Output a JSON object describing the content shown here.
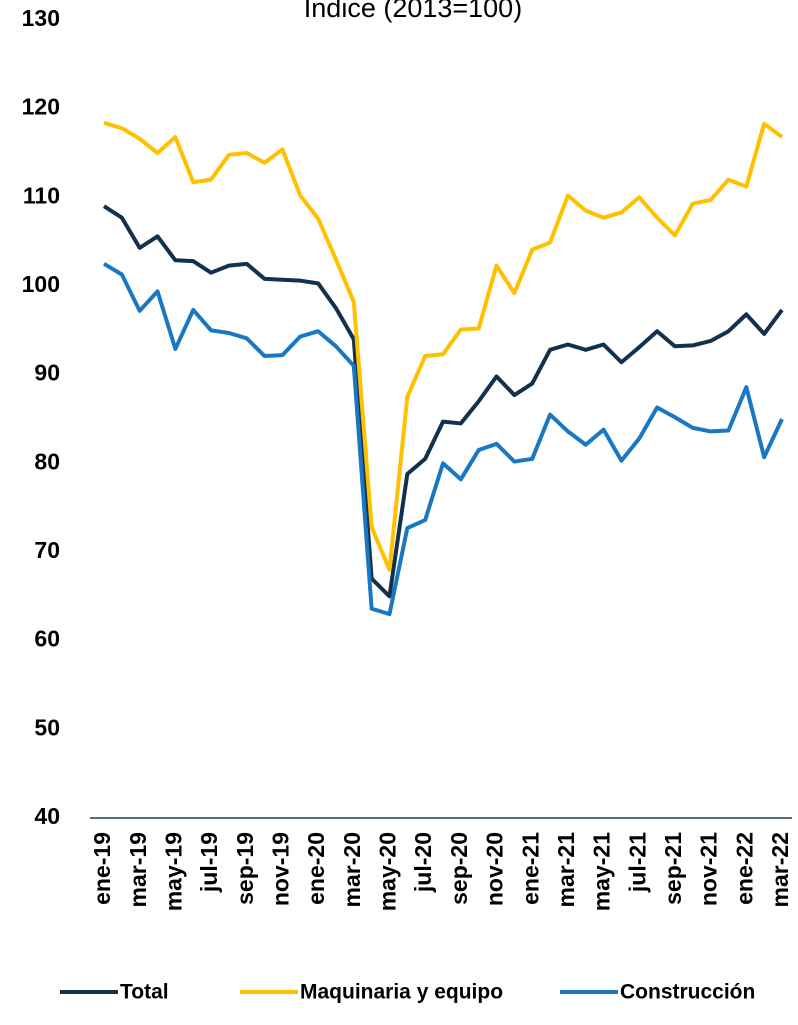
{
  "chart_data": {
    "type": "line",
    "title": "Índice (2013=100)",
    "categories": [
      "ene-19",
      null,
      "mar-19",
      null,
      "may-19",
      null,
      "jul-19",
      null,
      "sep-19",
      null,
      "nov-19",
      null,
      "ene-20",
      null,
      "mar-20",
      null,
      "may-20",
      null,
      "jul-20",
      null,
      "sep-20",
      null,
      "nov-20",
      null,
      "ene-21",
      null,
      "mar-21",
      null,
      "may-21",
      null,
      "jul-21",
      null,
      "sep-21",
      null,
      "nov-21",
      null,
      "ene-22",
      null,
      "mar-22"
    ],
    "series": [
      {
        "name": "Total",
        "color": "#14304f",
        "values": [
          109,
          107.7,
          104.3,
          105.6,
          102.9,
          102.8,
          101.5,
          102.3,
          102.5,
          100.8,
          100.7,
          100.6,
          100.3,
          97.5,
          94,
          67,
          65,
          78.8,
          80.5,
          84.7,
          84.5,
          87,
          89.8,
          87.7,
          89,
          92.8,
          93.4,
          92.8,
          93.4,
          91.4,
          93.1,
          94.9,
          93.2,
          93.3,
          93.8,
          94.9,
          96.8,
          94.6,
          97.3
        ]
      },
      {
        "name": "Maquinaria y equipo",
        "color": "#ffc000",
        "values": [
          118.4,
          117.8,
          116.6,
          115,
          116.8,
          111.7,
          112,
          114.8,
          115,
          113.9,
          115.4,
          110.2,
          107.6,
          103,
          98.2,
          72.8,
          68,
          87.5,
          92.1,
          92.3,
          95.1,
          95.2,
          102.3,
          99.2,
          104.1,
          104.9,
          110.2,
          108.5,
          107.7,
          108.3,
          110,
          107.7,
          105.7,
          109.3,
          109.7,
          112,
          111.2,
          118.3,
          116.8
        ]
      },
      {
        "name": "Construcción",
        "color": "#1a78c2",
        "values": [
          102.5,
          101.3,
          97.2,
          99.4,
          92.9,
          97.3,
          95,
          94.7,
          94.1,
          92.1,
          92.2,
          94.3,
          94.9,
          93.2,
          91,
          63.6,
          63,
          72.7,
          73.6,
          80,
          78.2,
          81.5,
          82.2,
          80.2,
          80.5,
          85.5,
          83.6,
          82.1,
          83.8,
          80.3,
          82.8,
          86.3,
          85.2,
          84,
          83.6,
          83.7,
          88.6,
          80.7,
          85
        ]
      }
    ],
    "ylim": [
      40,
      130
    ],
    "yticks": [
      40,
      50,
      60,
      70,
      80,
      90,
      100,
      110,
      120,
      130
    ],
    "grid": false
  }
}
